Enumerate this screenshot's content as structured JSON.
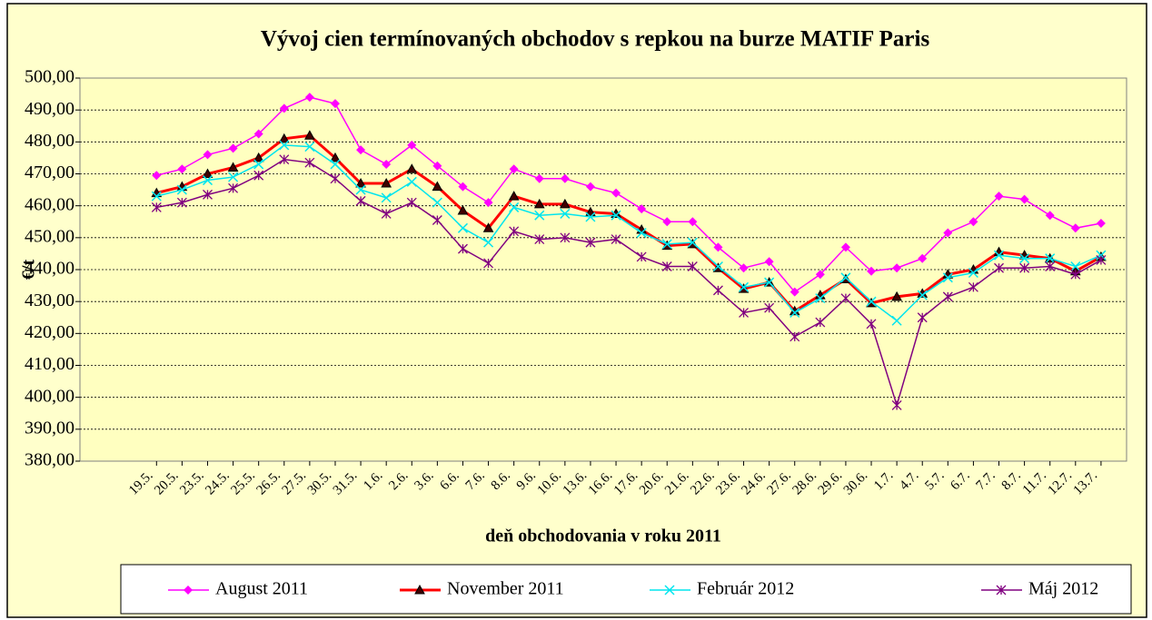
{
  "chart_data": {
    "type": "line",
    "title": "Vývoj cien termínovaných obchodov s repkou na burze MATIF Paris",
    "x_label": "deň obchodovania v roku 2011",
    "y_label": "€/t",
    "categories": [
      "19.5.",
      "20.5.",
      "23.5.",
      "24.5.",
      "25.5.",
      "26.5.",
      "27.5.",
      "30.5.",
      "31.5.",
      "1.6.",
      "2.6.",
      "3.6.",
      "6.6.",
      "7.6.",
      "8.6.",
      "9.6.",
      "10.6.",
      "13.6.",
      "16.6.",
      "17.6.",
      "20.6.",
      "21.6.",
      "22.6.",
      "23.6.",
      "24.6.",
      "27.6.",
      "28.6.",
      "29.6.",
      "30.6.",
      "1.7.",
      "4.7.",
      "5.7.",
      "6.7.",
      "7.7.",
      "8.7.",
      "11.7.",
      "12.7.",
      "13.7."
    ],
    "series": [
      {
        "name": "August 2011",
        "color": "#ff00ff",
        "marker": "diamond",
        "values": [
          469.5,
          471.5,
          476,
          478,
          482.5,
          490.5,
          494,
          492,
          477.5,
          473,
          479,
          472.5,
          466,
          461,
          471.5,
          468.5,
          468.5,
          466,
          464,
          459,
          455,
          455,
          447,
          440.5,
          442.5,
          433,
          438.5,
          447,
          439.5,
          440.5,
          443.5,
          451.5,
          455,
          463,
          462,
          457,
          453,
          454.5
        ]
      },
      {
        "name": "November 2011",
        "color": "#ff0000",
        "marker": "triangle",
        "values": [
          464,
          466,
          470,
          472,
          475,
          481,
          482,
          475,
          467,
          467,
          471.5,
          466,
          458.5,
          453,
          463,
          460.5,
          460.5,
          458,
          457.5,
          452.5,
          447.5,
          448,
          440.5,
          434,
          436,
          427,
          432,
          437,
          429.5,
          431.5,
          432.5,
          438.5,
          440,
          445.5,
          444.5,
          443.5,
          439.5,
          444
        ]
      },
      {
        "name": "Február 2012",
        "color": "#00e5ee",
        "marker": "x",
        "values": [
          463,
          465,
          468,
          469,
          473,
          479,
          478.5,
          473,
          465,
          462.5,
          467.5,
          461,
          453,
          448.5,
          459.5,
          457,
          457.5,
          456.5,
          457,
          451.5,
          448,
          448.5,
          441,
          434.5,
          436,
          426.5,
          431,
          437.5,
          430,
          424,
          432,
          437.5,
          439,
          444.5,
          443.5,
          443.5,
          441,
          444.5
        ]
      },
      {
        "name": "Máj  2012",
        "color": "#800080",
        "marker": "star",
        "values": [
          459.5,
          461,
          463.5,
          465.5,
          469.5,
          474.5,
          473.5,
          468.5,
          461.5,
          457.5,
          461,
          455.5,
          446.5,
          442,
          452,
          449.5,
          450,
          448.5,
          449.5,
          444,
          441,
          441,
          433.5,
          426.5,
          428,
          419,
          423.5,
          431,
          423,
          397.5,
          425,
          431.5,
          434.5,
          440.5,
          440.5,
          441,
          438.5,
          443
        ]
      }
    ],
    "ylim": [
      380,
      500
    ],
    "yticks": [
      {
        "value": 380,
        "label": "380,00"
      },
      {
        "value": 390,
        "label": "390,00"
      },
      {
        "value": 400,
        "label": "400,00"
      },
      {
        "value": 410,
        "label": "410,00"
      },
      {
        "value": 420,
        "label": "420,00"
      },
      {
        "value": 430,
        "label": "430,00"
      },
      {
        "value": 440,
        "label": "440,00"
      },
      {
        "value": 450,
        "label": "450,00"
      },
      {
        "value": 460,
        "label": "460,00"
      },
      {
        "value": 470,
        "label": "470,00"
      },
      {
        "value": 480,
        "label": "480,00"
      },
      {
        "value": 490,
        "label": "490,00"
      },
      {
        "value": 500,
        "label": "500,00"
      }
    ],
    "grid": true,
    "legend": "bottom"
  }
}
